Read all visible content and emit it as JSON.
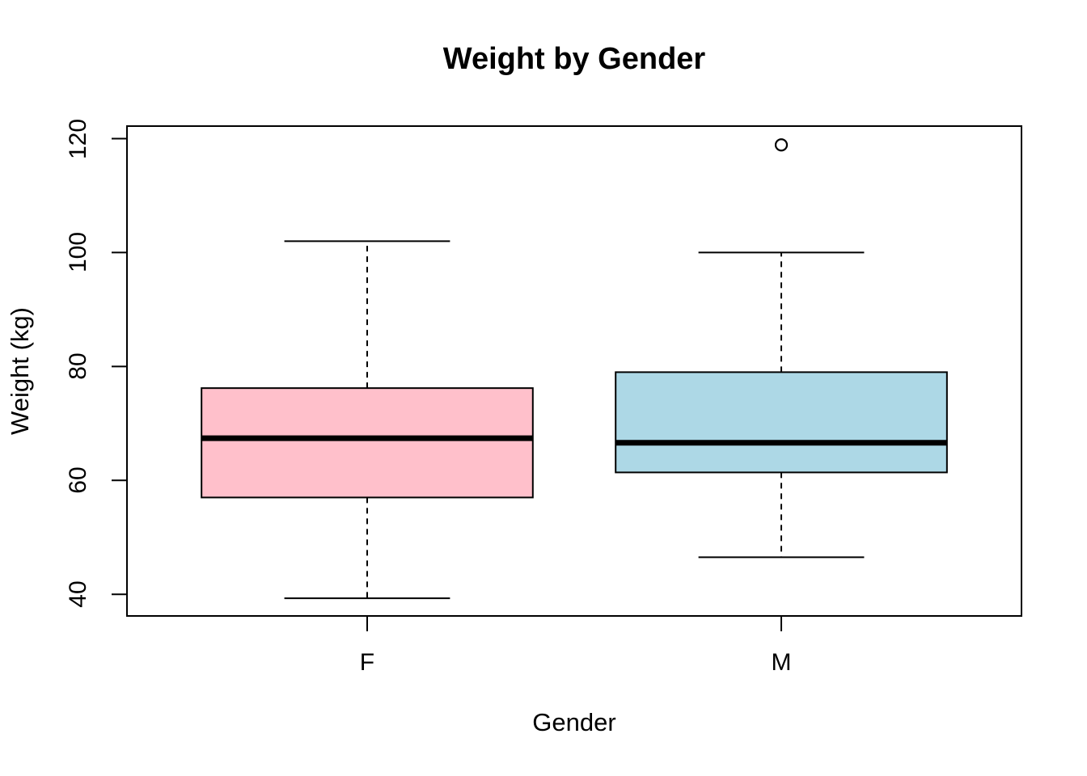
{
  "page": {
    "background": "#FFFFFF"
  },
  "chart_data": {
    "type": "boxplot",
    "title": "Weight by Gender",
    "xlabel": "Gender",
    "ylabel": "Weight (kg)",
    "categories": [
      "F",
      "M"
    ],
    "y_ticks": [
      40,
      60,
      80,
      100,
      120
    ],
    "ylim": [
      36.2,
      122.2
    ],
    "xlim": [
      0.42,
      2.58
    ],
    "grid": false,
    "legend": false,
    "frame": true,
    "box_width": 0.8,
    "staple_width": 0.4,
    "whisker_style": "dashed",
    "stroke_color": "#000000",
    "groups": [
      {
        "category": "F",
        "x": 1,
        "fill": "#FFC0CB",
        "whisker_low": 39.3,
        "q1": 57.0,
        "median": 67.4,
        "q3": 76.2,
        "whisker_high": 102.0,
        "outliers": []
      },
      {
        "category": "M",
        "x": 2,
        "fill": "#ADD8E6",
        "whisker_low": 46.5,
        "q1": 61.4,
        "median": 66.6,
        "q3": 79.0,
        "whisker_high": 100.0,
        "outliers": [
          118.9
        ]
      }
    ]
  }
}
